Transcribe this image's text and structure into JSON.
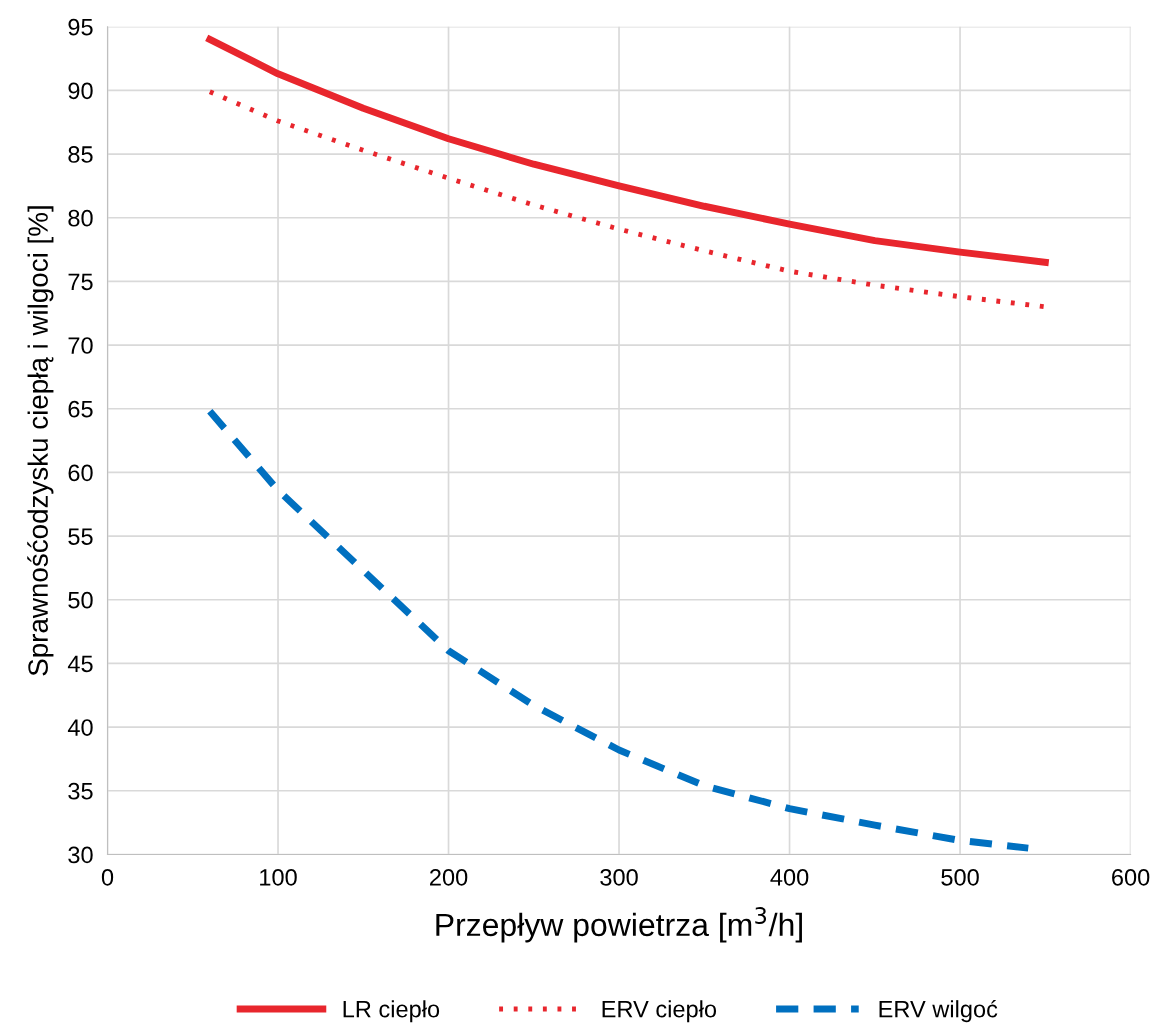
{
  "chart_data": {
    "type": "line",
    "xlabel": "Przepływ powietrza [m$^{3}$/h]",
    "ylabel": "Sprawnośćodzysku ciepłą i wilgoci [%]",
    "xlim": [
      0,
      600
    ],
    "xticks": [
      0,
      100,
      200,
      300,
      400,
      500,
      600
    ],
    "ylim": [
      30,
      95
    ],
    "yticks": [
      30,
      35,
      40,
      45,
      50,
      55,
      60,
      65,
      70,
      75,
      80,
      85,
      90,
      95
    ],
    "grid": true,
    "legend": "bottom",
    "marker": "none",
    "series": [
      {
        "name": "LR ciepło",
        "color": "#e8262d",
        "line_style": "solid",
        "x": [
          60,
          100,
          150,
          200,
          250,
          300,
          350,
          400,
          450,
          500,
          550
        ],
        "values": [
          94.0,
          91.3,
          88.6,
          86.2,
          84.2,
          82.5,
          80.9,
          79.5,
          78.2,
          77.3,
          76.5
        ]
      },
      {
        "name": "ERV ciepło",
        "color": "#e8262d",
        "line_style": "dotted",
        "x": [
          60,
          100,
          150,
          200,
          250,
          300,
          350,
          400,
          450,
          500,
          550
        ],
        "values": [
          89.9,
          87.6,
          85.3,
          83.1,
          81.0,
          79.1,
          77.4,
          75.8,
          74.7,
          73.8,
          73.0
        ]
      },
      {
        "name": "ERV wilgoć",
        "color": "#0070c0",
        "line_style": "dashed",
        "x": [
          60,
          100,
          150,
          200,
          250,
          300,
          350,
          400,
          450,
          500,
          540
        ],
        "values": [
          64.8,
          58.6,
          52.3,
          46.0,
          41.7,
          38.2,
          35.4,
          33.6,
          32.3,
          31.1,
          30.5
        ]
      }
    ]
  }
}
